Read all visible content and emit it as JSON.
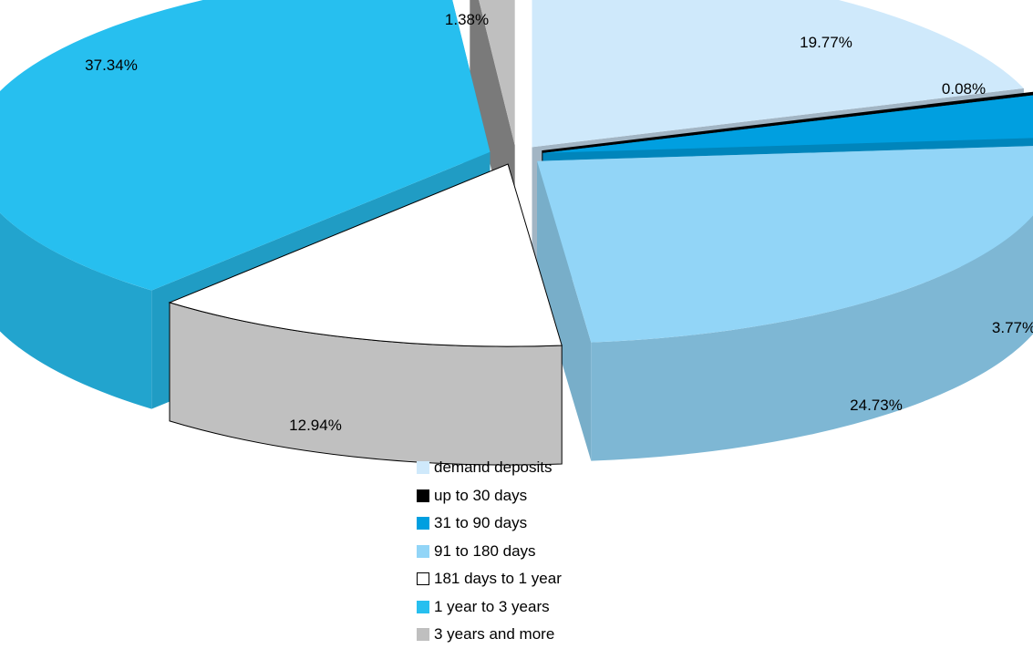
{
  "chart_data": {
    "type": "pie",
    "style": "3d exploded pie",
    "categories": [
      "demand deposits",
      "up to 30 days",
      "31 to 90 days",
      "91 to 180 days",
      "181 days to 1 year",
      "1 year to 3 years",
      "3 years and more"
    ],
    "values": [
      19.77,
      0.08,
      3.77,
      24.73,
      12.94,
      37.34,
      1.38
    ],
    "data_labels": [
      "19.77%",
      "0.08%",
      "3.77%",
      "24.73%",
      "12.94%",
      "37.34%",
      "1.38%"
    ],
    "colors": [
      "#cfe9fb",
      "#000000",
      "#009fe0",
      "#92d5f7",
      "#ffffff",
      "#27bfef",
      "#bfbfbf"
    ],
    "legend_position": "bottom"
  }
}
